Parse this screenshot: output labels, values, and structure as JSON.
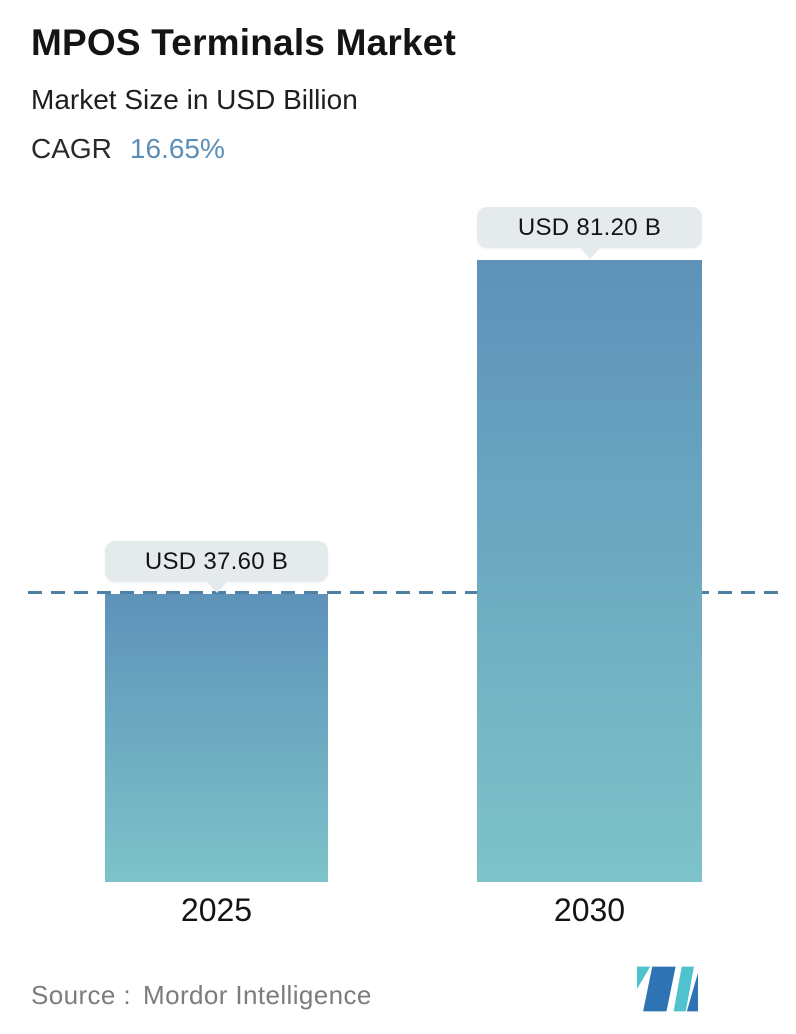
{
  "header": {
    "title": "MPOS Terminals Market",
    "subtitle": "Market Size in USD Billion",
    "cagr_label": "CAGR",
    "cagr_value": "16.65%"
  },
  "chart_data": {
    "type": "bar",
    "categories": [
      "2025",
      "2030"
    ],
    "values": [
      37.6,
      81.2
    ],
    "value_labels": [
      "USD 37.60 B",
      "USD 81.20 B"
    ],
    "title": "MPOS Terminals Market",
    "subtitle": "Market Size in USD Billion",
    "unit": "USD Billion",
    "xlabel": "",
    "ylabel": "",
    "ylim": [
      0,
      88
    ],
    "grid": false,
    "legend": "none",
    "cagr": "16.65%",
    "reference_line": {
      "value": 37.6,
      "style": "dashed",
      "color": "#4e80a4"
    },
    "colors": {
      "bar_gradient_top": "#5e92ba",
      "bar_gradient_bottom": "#7dc3c9",
      "label_bubble_bg": "#e5ebed",
      "cagr_accent": "#5c8fb8",
      "logo_blue": "#2e74b4",
      "logo_teal": "#4ec3cd"
    }
  },
  "footer": {
    "source_label": "Source :",
    "source_value": "Mordor Intelligence",
    "logo_name": "mordor-intelligence-logo"
  }
}
